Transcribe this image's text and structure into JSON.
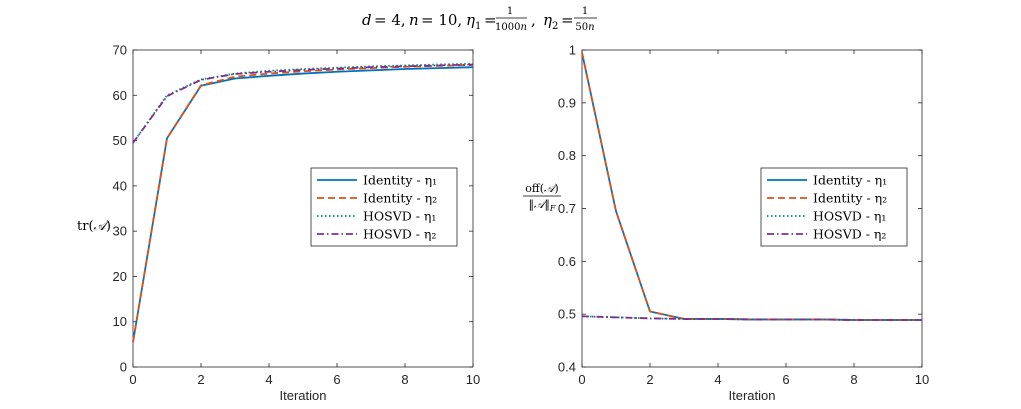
{
  "figure": {
    "suptitle": "d = 4, n = 10, η₁ = 1/1000n, η₂ = 1/50n"
  },
  "chart_data": [
    {
      "type": "line",
      "xlabel": "Iteration",
      "ylabel": "tr(𝒜)",
      "xlim": [
        0,
        10
      ],
      "ylim": [
        0,
        70
      ],
      "xticks": [
        0,
        2,
        4,
        6,
        8,
        10
      ],
      "yticks": [
        0,
        10,
        20,
        30,
        40,
        50,
        60,
        70
      ],
      "grid": false,
      "legend_position": "center-right",
      "x": [
        0,
        1,
        2,
        3,
        4,
        5,
        6,
        7,
        8,
        9,
        10
      ],
      "series": [
        {
          "name": "Identity - η₁",
          "color": "#0072BD",
          "style": "solid",
          "values": [
            5.5,
            50.5,
            62.1,
            63.7,
            64.3,
            64.8,
            65.2,
            65.5,
            65.8,
            66.0,
            66.2
          ]
        },
        {
          "name": "Identity - η₂",
          "color": "#D95319",
          "style": "dashed",
          "values": [
            5.5,
            50.5,
            62.2,
            64.1,
            64.8,
            65.3,
            65.7,
            66.0,
            66.3,
            66.5,
            66.7
          ]
        },
        {
          "name": "HOSVD - η₁",
          "color": "#00897B",
          "style": "dotted",
          "values": [
            49.5,
            60.0,
            63.5,
            64.8,
            65.4,
            65.8,
            66.1,
            66.4,
            66.6,
            66.8,
            67.0
          ]
        },
        {
          "name": "HOSVD - η₂",
          "color": "#7E2F8E",
          "style": "dashdot",
          "values": [
            49.5,
            59.8,
            63.4,
            64.7,
            65.2,
            65.6,
            65.9,
            66.2,
            66.4,
            66.6,
            66.8
          ]
        }
      ]
    },
    {
      "type": "line",
      "xlabel": "Iteration",
      "ylabel": "off(𝒜) / ‖𝒜‖_F",
      "xlim": [
        0,
        10
      ],
      "ylim": [
        0.4,
        1
      ],
      "xticks": [
        0,
        2,
        4,
        6,
        8,
        10
      ],
      "yticks": [
        0.4,
        0.5,
        0.6,
        0.7,
        0.8,
        0.9,
        1
      ],
      "grid": false,
      "legend_position": "center-right",
      "x": [
        0,
        1,
        2,
        3,
        4,
        5,
        6,
        7,
        8,
        9,
        10
      ],
      "series": [
        {
          "name": "Identity - η₁",
          "color": "#0072BD",
          "style": "solid",
          "values": [
            0.995,
            0.695,
            0.505,
            0.491,
            0.491,
            0.49,
            0.49,
            0.49,
            0.489,
            0.489,
            0.489
          ]
        },
        {
          "name": "Identity - η₂",
          "color": "#D95319",
          "style": "dashed",
          "values": [
            0.995,
            0.695,
            0.505,
            0.491,
            0.491,
            0.49,
            0.49,
            0.49,
            0.489,
            0.489,
            0.489
          ]
        },
        {
          "name": "HOSVD - η₁",
          "color": "#00897B",
          "style": "dotted",
          "values": [
            0.496,
            0.494,
            0.492,
            0.491,
            0.491,
            0.49,
            0.49,
            0.49,
            0.489,
            0.489,
            0.489
          ]
        },
        {
          "name": "HOSVD - η₂",
          "color": "#7E2F8E",
          "style": "dashdot",
          "values": [
            0.496,
            0.494,
            0.492,
            0.491,
            0.491,
            0.49,
            0.49,
            0.49,
            0.489,
            0.489,
            0.489
          ]
        }
      ]
    }
  ]
}
